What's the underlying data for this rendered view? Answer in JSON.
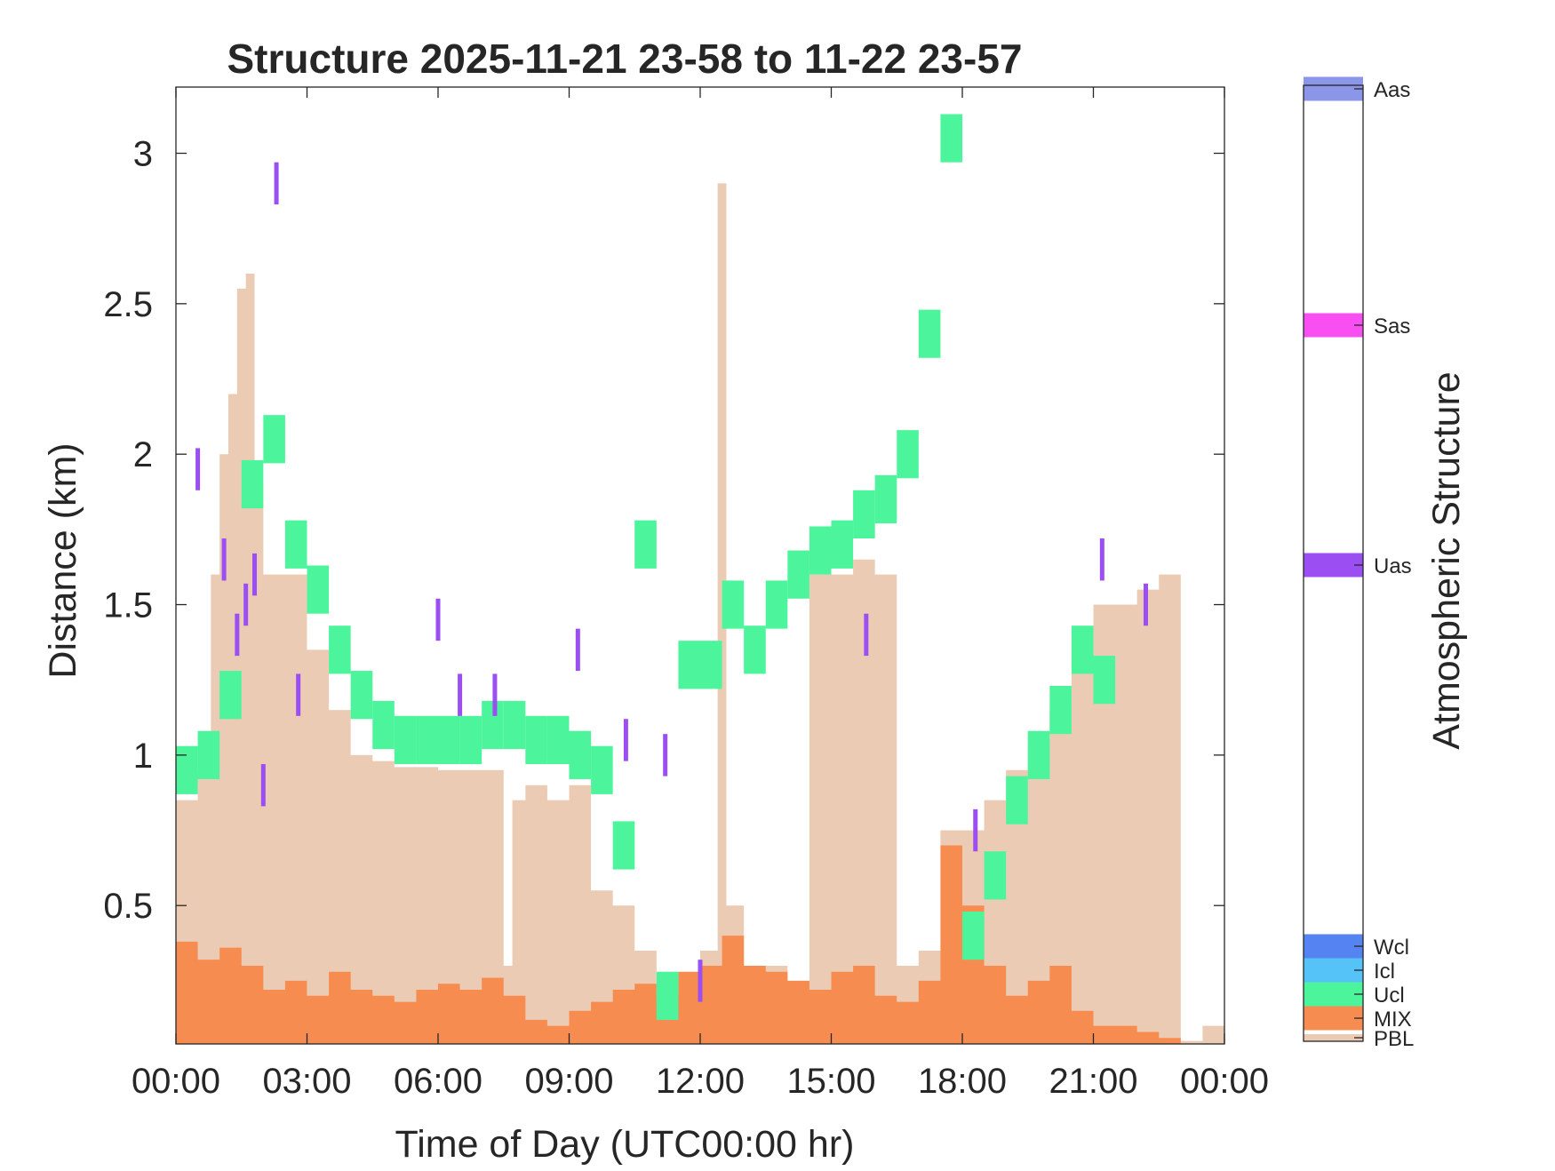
{
  "chart_data": {
    "type": "area",
    "title": "Structure 2025-11-21 23-58 to 11-22 23-57",
    "xlabel": "Time of Day (UTC00:00 hr)",
    "ylabel": "Distance (km)",
    "xlim": [
      0,
      24
    ],
    "ylim": [
      0.04,
      3.22
    ],
    "x_ticks": [
      0,
      3,
      6,
      9,
      12,
      15,
      18,
      21,
      24
    ],
    "x_tick_labels": [
      "00:00",
      "03:00",
      "06:00",
      "09:00",
      "12:00",
      "15:00",
      "18:00",
      "21:00",
      "00:00"
    ],
    "y_ticks": [
      0.5,
      1,
      1.5,
      2,
      2.5,
      3
    ],
    "y_tick_labels": [
      "0.5",
      "1",
      "1.5",
      "2",
      "2.5",
      "3"
    ],
    "grid": false,
    "colorbar": {
      "label": "Atmospheric Structure",
      "categories": [
        {
          "code": "PBL",
          "color": "#ebcbb4"
        },
        {
          "code": "MIX",
          "color": "#f78c50"
        },
        {
          "code": "Ucl",
          "color": "#4cf59c"
        },
        {
          "code": "Icl",
          "color": "#55c3f7"
        },
        {
          "code": "Wcl",
          "color": "#5583f2"
        },
        {
          "code": "Uas",
          "color": "#9b4ff2"
        },
        {
          "code": "Sas",
          "color": "#f94ff2"
        },
        {
          "code": "Aas",
          "color": "#8b96e8"
        }
      ]
    },
    "series": [
      {
        "name": "PBL",
        "x": [
          0,
          0.5,
          0.8,
          1.0,
          1.2,
          1.4,
          1.6,
          1.8,
          2.0,
          2.2,
          2.5,
          3.0,
          3.5,
          4.0,
          4.5,
          5.0,
          6.0,
          7.0,
          7.5,
          7.7,
          8.0,
          8.5,
          9.0,
          9.5,
          10.0,
          10.5,
          11.0,
          11.5,
          12.0,
          12.4,
          12.6,
          13.0,
          14.0,
          14.5,
          15.0,
          15.5,
          16.0,
          16.5,
          17.0,
          17.5,
          18.0,
          18.5,
          19.0,
          19.5,
          20.0,
          20.5,
          21.0,
          21.5,
          22.0,
          22.5,
          23.0,
          23.5,
          24.0
        ],
        "y": [
          0.85,
          0.95,
          1.6,
          2.0,
          2.2,
          2.55,
          2.6,
          1.9,
          1.6,
          1.6,
          1.6,
          1.35,
          1.15,
          1.0,
          0.98,
          0.96,
          0.95,
          0.95,
          0.3,
          0.85,
          0.9,
          0.85,
          0.9,
          0.55,
          0.5,
          0.35,
          0.15,
          0.25,
          0.35,
          2.9,
          0.5,
          0.3,
          0.25,
          1.6,
          1.6,
          1.65,
          1.6,
          0.3,
          0.35,
          0.75,
          0.75,
          0.85,
          0.95,
          1.05,
          1.15,
          1.3,
          1.5,
          1.5,
          1.55,
          1.6,
          0.05,
          0.1,
          0.05
        ]
      },
      {
        "name": "MIX",
        "x": [
          0,
          0.5,
          1.0,
          1.5,
          2.0,
          2.5,
          3.0,
          3.5,
          4.0,
          4.5,
          5.0,
          5.5,
          6.0,
          6.5,
          7.0,
          7.5,
          8.0,
          8.5,
          9.0,
          9.5,
          10.0,
          10.5,
          11.0,
          11.5,
          12.0,
          12.5,
          13.0,
          13.5,
          14.0,
          14.5,
          15.0,
          15.5,
          16.0,
          16.5,
          17.0,
          17.5,
          18.0,
          18.5,
          19.0,
          19.5,
          20.0,
          20.5,
          21.0,
          21.5,
          22.0,
          22.5,
          23.0,
          23.5,
          24.0
        ],
        "y": [
          0.38,
          0.32,
          0.36,
          0.3,
          0.22,
          0.25,
          0.2,
          0.28,
          0.22,
          0.2,
          0.18,
          0.22,
          0.24,
          0.22,
          0.26,
          0.2,
          0.12,
          0.1,
          0.15,
          0.18,
          0.22,
          0.24,
          0.2,
          0.28,
          0.3,
          0.4,
          0.3,
          0.28,
          0.25,
          0.22,
          0.28,
          0.3,
          0.2,
          0.18,
          0.25,
          0.7,
          0.5,
          0.3,
          0.2,
          0.25,
          0.3,
          0.15,
          0.1,
          0.1,
          0.08,
          0.06,
          0.04,
          0.04,
          0.04
        ]
      },
      {
        "name": "Ucl",
        "x": [
          0,
          0.5,
          1.0,
          1.5,
          2.0,
          2.5,
          3.0,
          3.5,
          4.0,
          4.5,
          5.0,
          5.5,
          6.0,
          6.5,
          7.0,
          7.5,
          8.0,
          8.5,
          9.0,
          9.5,
          10.0,
          10.5,
          11.0,
          11.5,
          12.0,
          12.5,
          13.0,
          13.5,
          14.0,
          14.5,
          15.0,
          15.5,
          16.0,
          16.5,
          17.0,
          17.5,
          18.0,
          18.5,
          19.0,
          19.5,
          20.0,
          20.5,
          21.0
        ],
        "y": [
          0.95,
          1.0,
          1.2,
          1.9,
          2.05,
          1.7,
          1.55,
          1.35,
          1.2,
          1.1,
          1.05,
          1.05,
          1.05,
          1.05,
          1.1,
          1.1,
          1.05,
          1.05,
          1.0,
          0.95,
          0.7,
          1.7,
          0.2,
          1.3,
          1.3,
          1.5,
          1.35,
          1.5,
          1.6,
          1.68,
          1.7,
          1.8,
          1.85,
          2.0,
          2.4,
          3.05,
          0.4,
          0.6,
          0.85,
          1.0,
          1.15,
          1.35,
          1.25
        ]
      },
      {
        "name": "Uas",
        "x": [
          0.5,
          1.1,
          1.4,
          1.6,
          1.8,
          2.0,
          2.3,
          2.8,
          6.0,
          6.5,
          7.3,
          9.2,
          10.3,
          11.2,
          12.0,
          15.8,
          18.3,
          21.2,
          22.2
        ],
        "y": [
          1.95,
          1.65,
          1.4,
          1.5,
          1.6,
          0.9,
          2.9,
          1.2,
          1.45,
          1.2,
          1.2,
          1.35,
          1.05,
          1.0,
          0.25,
          1.4,
          0.75,
          1.65,
          1.5
        ]
      }
    ]
  }
}
